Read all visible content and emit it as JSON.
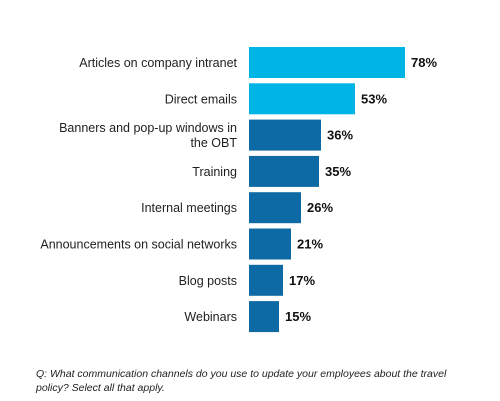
{
  "chart_data": {
    "type": "bar",
    "orientation": "horizontal",
    "categories": [
      [
        "Articles on company intranet"
      ],
      [
        "Direct emails"
      ],
      [
        "Banners and pop-up windows in",
        "the OBT"
      ],
      [
        "Training"
      ],
      [
        "Internal meetings"
      ],
      [
        "Announcements on social networks"
      ],
      [
        "Blog posts"
      ],
      [
        "Webinars"
      ]
    ],
    "values": [
      78,
      53,
      36,
      35,
      26,
      21,
      17,
      15
    ],
    "value_labels": [
      "78%",
      "53%",
      "36%",
      "35%",
      "26%",
      "21%",
      "17%",
      "15%"
    ],
    "highlight_count": 2,
    "colors": {
      "highlight": "#00b4e6",
      "default": "#0d6aa4"
    },
    "xlim": [
      0,
      100
    ],
    "grid": false,
    "legend": "none"
  },
  "footnote": "Q: What communication channels do you use to update your employees about the travel policy? Select all that apply."
}
